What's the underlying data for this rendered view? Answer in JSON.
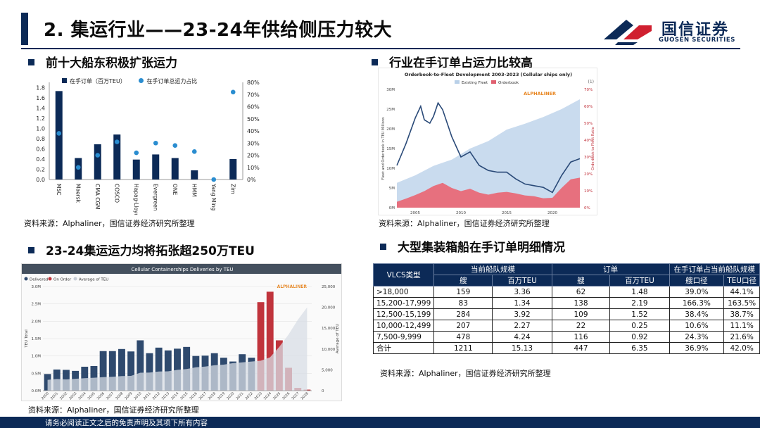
{
  "page": {
    "title": "2. 集运行业——23-24年供给侧压力较大",
    "logo_cn": "国信证券",
    "logo_en": "GUOSEN SECURITIES",
    "footer": "请务必阅读正文之后的免责声明及其项下所有内容",
    "colors": {
      "navy": "#0c2a57",
      "red": "#d02030"
    }
  },
  "sections": {
    "top_left": "前十大船东积极扩张运力",
    "top_right": "行业在手订单占运力比较高",
    "bottom_left": "23-24集运运力均将拓张超250万TEU",
    "bottom_right": "大型集装箱船在手订单明细情况"
  },
  "sources": {
    "s1": "资料来源：Alphaliner，国信证券经济研究所整理",
    "s2": "资料来源：Alphaliner，国信证券经济研究所整理",
    "s3": "资料来源：Alphaliner，国信证券经济研究所整理",
    "s4": "资料来源：Alphaliner，国信证券经济研究所整理"
  },
  "chart_data": [
    {
      "type": "bar",
      "title": "",
      "categories": [
        "MSC",
        "Maersk",
        "CMA CGM",
        "COSCO",
        "Hapag-Lloyd",
        "Evergreen",
        "ONE",
        "HMM",
        "Yang Ming",
        "Zim"
      ],
      "series": [
        {
          "name": "在手订单（百万TEU）",
          "kind": "bar",
          "axis": "left",
          "values": [
            1.73,
            0.42,
            0.69,
            0.88,
            0.39,
            0.49,
            0.42,
            0.18,
            0.0,
            0.4
          ]
        },
        {
          "name": "在手订单总运力占比",
          "kind": "dot",
          "axis": "right",
          "values": [
            0.38,
            0.1,
            0.2,
            0.31,
            0.22,
            0.3,
            0.28,
            0.23,
            0.0,
            0.72
          ]
        }
      ],
      "left_ticks": [
        "0.0",
        "0.2",
        "0.4",
        "0.6",
        "0.8",
        "1.0",
        "1.2",
        "1.4",
        "1.6",
        "1.8"
      ],
      "right_ticks": [
        "0%",
        "10%",
        "20%",
        "30%",
        "40%",
        "50%",
        "60%",
        "70%",
        "80%"
      ],
      "ylim": [
        0,
        1.9
      ],
      "y2lim": [
        0,
        0.8
      ]
    },
    {
      "type": "area",
      "title": "Orderbook-to-Fleet Development 2003-2023 (Cellular ships only)",
      "series": [
        {
          "name": "Existing Fleet",
          "kind": "area"
        },
        {
          "name": "Orderbook",
          "kind": "area"
        },
        {
          "name": "Orderbook to Fleet Ratio",
          "kind": "line"
        }
      ],
      "x_ticks": [
        "2005",
        "2010",
        "2015",
        "2020"
      ],
      "left_ticks": [
        "0M",
        "5M",
        "10M",
        "15M",
        "20M",
        "25M",
        "30M"
      ],
      "right_ticks": [
        "0%",
        "10%",
        "20%",
        "30%",
        "40%",
        "50%",
        "60%",
        "70%"
      ],
      "ylabel": "Fleet and Orderbook in TEU Millions",
      "y2label": "Orderbook to Fleet Ratio",
      "brand": "ALPHALINER",
      "note": "(1)",
      "fleet": [
        [
          2003,
          6.3
        ],
        [
          2005,
          8.2
        ],
        [
          2007,
          10.6
        ],
        [
          2009,
          12.2
        ],
        [
          2011,
          15.0
        ],
        [
          2013,
          16.9
        ],
        [
          2015,
          19.8
        ],
        [
          2017,
          21.3
        ],
        [
          2019,
          23.0
        ],
        [
          2021,
          25.0
        ],
        [
          2023,
          27.5
        ]
      ],
      "orderbook": [
        [
          2003,
          1.5
        ],
        [
          2004,
          2.3
        ],
        [
          2005,
          3.2
        ],
        [
          2006,
          4.2
        ],
        [
          2007,
          5.5
        ],
        [
          2008,
          6.3
        ],
        [
          2009,
          5.0
        ],
        [
          2010,
          4.2
        ],
        [
          2011,
          4.8
        ],
        [
          2012,
          3.8
        ],
        [
          2013,
          3.3
        ],
        [
          2014,
          3.8
        ],
        [
          2015,
          4.0
        ],
        [
          2016,
          3.6
        ],
        [
          2017,
          3.1
        ],
        [
          2018,
          2.9
        ],
        [
          2019,
          2.4
        ],
        [
          2020,
          2.5
        ],
        [
          2021,
          5.0
        ],
        [
          2022,
          7.2
        ],
        [
          2023,
          7.6
        ]
      ],
      "ratio": [
        [
          2003,
          0.25
        ],
        [
          2004,
          0.38
        ],
        [
          2005,
          0.53
        ],
        [
          2005.6,
          0.6
        ],
        [
          2006,
          0.52
        ],
        [
          2006.6,
          0.5
        ],
        [
          2007,
          0.54
        ],
        [
          2007.5,
          0.62
        ],
        [
          2008,
          0.58
        ],
        [
          2009,
          0.42
        ],
        [
          2010,
          0.3
        ],
        [
          2011,
          0.33
        ],
        [
          2012,
          0.25
        ],
        [
          2013,
          0.22
        ],
        [
          2014,
          0.21
        ],
        [
          2015,
          0.21
        ],
        [
          2016,
          0.17
        ],
        [
          2017,
          0.14
        ],
        [
          2018,
          0.13
        ],
        [
          2019,
          0.12
        ],
        [
          2020,
          0.09
        ],
        [
          2021,
          0.19
        ],
        [
          2022,
          0.27
        ],
        [
          2023,
          0.29
        ]
      ]
    },
    {
      "type": "bar",
      "title": "Cellular Containerships Deliveries by TEU",
      "legend": [
        "Delivered",
        "On Order",
        "Average of TEU"
      ],
      "brand": "ALPHALINER",
      "ylabel": "TEU Total",
      "y2label": "Average of TEU",
      "categories": [
        "2000",
        "2001",
        "2002",
        "2003",
        "2004",
        "2005",
        "2006",
        "2007",
        "2008",
        "2009",
        "2010",
        "2011",
        "2012",
        "2013",
        "2014",
        "2015",
        "2016",
        "2017",
        "2018",
        "2019",
        "2020",
        "2021",
        "2022",
        "2023",
        "2024",
        "2025",
        "2026",
        "2027",
        "2028"
      ],
      "delivered": [
        0.48,
        0.61,
        0.6,
        0.57,
        0.69,
        0.71,
        1.14,
        1.14,
        1.2,
        1.13,
        1.45,
        1.08,
        1.24,
        1.16,
        1.21,
        1.26,
        1.0,
        1.01,
        1.08,
        0.95,
        0.84,
        1.05,
        0.95,
        0,
        0,
        0,
        0,
        0,
        0
      ],
      "on_order": [
        0,
        0,
        0,
        0,
        0,
        0,
        0,
        0,
        0,
        0,
        0,
        0,
        0,
        0,
        0,
        0,
        0,
        0,
        0,
        0,
        0,
        0,
        0,
        2.55,
        2.85,
        1.45,
        0.66,
        0.08,
        0.03
      ],
      "avg_teu": [
        2600,
        2800,
        2700,
        2850,
        3000,
        3100,
        3250,
        3350,
        3500,
        3550,
        4300,
        4350,
        4600,
        4650,
        5000,
        5200,
        5600,
        5800,
        6100,
        6250,
        6600,
        6800,
        7000,
        7200,
        8000,
        10500,
        13500,
        17000,
        20000
      ],
      "left_ticks": [
        "0.0M",
        "0.5M",
        "1.0M",
        "1.5M",
        "2.0M",
        "2.5M",
        "3.0M"
      ],
      "right_ticks": [
        "0",
        "5,000",
        "10,000",
        "15,000",
        "20,000",
        "25,000"
      ],
      "ylim": [
        0,
        3.0
      ],
      "y2lim": [
        0,
        25000
      ]
    }
  ],
  "table": {
    "headers_top": [
      "VLCS类型",
      "当前船队规模",
      "订单",
      "在手订单占当前船队规模"
    ],
    "headers_sub": [
      "艘",
      "百万TEU",
      "艘",
      "百万TEU",
      "艘口径",
      "TEU口径"
    ],
    "rows": [
      [
        ">18,000",
        "159",
        "3.36",
        "62",
        "1.48",
        "39.0%",
        "44.1%"
      ],
      [
        "15,200-17,999",
        "83",
        "1.34",
        "138",
        "2.19",
        "166.3%",
        "163.5%"
      ],
      [
        "12,500-15,199",
        "284",
        "3.92",
        "109",
        "1.52",
        "38.4%",
        "38.7%"
      ],
      [
        "10,000-12,499",
        "207",
        "2.27",
        "22",
        "0.25",
        "10.6%",
        "11.1%"
      ],
      [
        "7,500-9,999",
        "478",
        "4.24",
        "116",
        "0.92",
        "24.3%",
        "21.6%"
      ],
      [
        "合计",
        "1211",
        "15.13",
        "447",
        "6.35",
        "36.9%",
        "42.0%"
      ]
    ]
  }
}
